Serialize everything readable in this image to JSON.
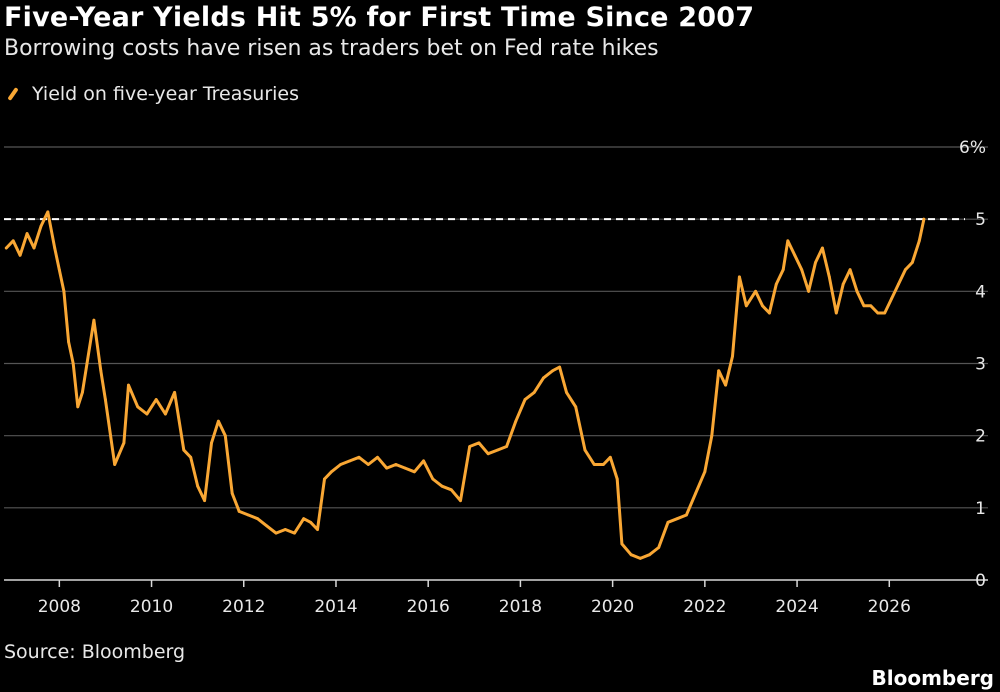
{
  "header": {
    "title": "Five-Year Yields Hit 5% for First Time Since 2007",
    "subtitle": "Borrowing costs have risen as traders bet on Fed rate hikes"
  },
  "footer": {
    "source": "Source: Bloomberg",
    "brand": "Bloomberg"
  },
  "colors": {
    "background": "#000000",
    "line": "#f9a734",
    "grid": "#555555",
    "reference": "#ffffff",
    "text": "#e8e8e8"
  },
  "chart_data": {
    "type": "line",
    "title": "Five-Year Yields Hit 5% for First Time Since 2007",
    "subtitle": "Borrowing costs have risen as traders bet on Fed rate hikes",
    "legend": "top-left",
    "grid": true,
    "xlim": [
      2006.8,
      2027.1
    ],
    "ylim": [
      0,
      6
    ],
    "x_ticks": [
      2008,
      2010,
      2012,
      2014,
      2016,
      2018,
      2020,
      2022,
      2024,
      2026
    ],
    "x_tick_labels": [
      "2008",
      "2010",
      "2012",
      "2014",
      "2016",
      "2018",
      "2020",
      "2022",
      "2024",
      "2026"
    ],
    "y_ticks": [
      0,
      1,
      2,
      3,
      4,
      5,
      6
    ],
    "y_tick_labels": [
      "0",
      "1",
      "2",
      "3",
      "4",
      "5",
      "6%"
    ],
    "y_axis_side": "right",
    "reference_line": {
      "y": 5,
      "style": "dashed"
    },
    "series": [
      {
        "name": "Yield on five-year Treasuries",
        "x": [
          2006.85,
          2007.0,
          2007.15,
          2007.3,
          2007.45,
          2007.6,
          2007.75,
          2007.9,
          2008.0,
          2008.1,
          2008.2,
          2008.3,
          2008.4,
          2008.5,
          2008.6,
          2008.75,
          2008.9,
          2009.0,
          2009.2,
          2009.4,
          2009.5,
          2009.7,
          2009.9,
          2010.1,
          2010.3,
          2010.5,
          2010.7,
          2010.85,
          2011.0,
          2011.15,
          2011.3,
          2011.45,
          2011.6,
          2011.75,
          2011.9,
          2012.1,
          2012.3,
          2012.5,
          2012.7,
          2012.9,
          2013.1,
          2013.3,
          2013.45,
          2013.6,
          2013.75,
          2013.9,
          2014.1,
          2014.3,
          2014.5,
          2014.7,
          2014.9,
          2015.1,
          2015.3,
          2015.5,
          2015.7,
          2015.9,
          2016.1,
          2016.3,
          2016.5,
          2016.7,
          2016.9,
          2017.1,
          2017.3,
          2017.5,
          2017.7,
          2017.9,
          2018.1,
          2018.3,
          2018.5,
          2018.7,
          2018.85,
          2019.0,
          2019.2,
          2019.4,
          2019.6,
          2019.8,
          2019.95,
          2020.1,
          2020.2,
          2020.4,
          2020.6,
          2020.8,
          2021.0,
          2021.2,
          2021.4,
          2021.6,
          2021.8,
          2022.0,
          2022.15,
          2022.3,
          2022.45,
          2022.6,
          2022.75,
          2022.9,
          2023.1,
          2023.25,
          2023.4,
          2023.55,
          2023.7,
          2023.8,
          2023.95,
          2024.1,
          2024.25,
          2024.4,
          2024.55,
          2024.7,
          2024.85,
          2025.0,
          2025.15,
          2025.3,
          2025.45,
          2025.6,
          2025.75,
          2025.9,
          2026.05,
          2026.2,
          2026.35,
          2026.5,
          2026.65,
          2026.75
        ],
        "y": [
          4.6,
          4.7,
          4.5,
          4.8,
          4.6,
          4.9,
          5.1,
          4.6,
          4.3,
          4.0,
          3.3,
          3.0,
          2.4,
          2.6,
          3.0,
          3.6,
          2.9,
          2.5,
          1.6,
          1.9,
          2.7,
          2.4,
          2.3,
          2.5,
          2.3,
          2.6,
          1.8,
          1.7,
          1.3,
          1.1,
          1.9,
          2.2,
          2.0,
          1.2,
          0.95,
          0.9,
          0.85,
          0.75,
          0.65,
          0.7,
          0.65,
          0.85,
          0.8,
          0.7,
          1.4,
          1.5,
          1.6,
          1.65,
          1.7,
          1.6,
          1.7,
          1.55,
          1.6,
          1.55,
          1.5,
          1.65,
          1.4,
          1.3,
          1.25,
          1.1,
          1.85,
          1.9,
          1.75,
          1.8,
          1.85,
          2.2,
          2.5,
          2.6,
          2.8,
          2.9,
          2.95,
          2.6,
          2.4,
          1.8,
          1.6,
          1.6,
          1.7,
          1.4,
          0.5,
          0.35,
          0.3,
          0.35,
          0.45,
          0.8,
          0.85,
          0.9,
          1.2,
          1.5,
          2.0,
          2.9,
          2.7,
          3.1,
          4.2,
          3.8,
          4.0,
          3.8,
          3.7,
          4.1,
          4.3,
          4.7,
          4.5,
          4.3,
          4.0,
          4.4,
          4.6,
          4.2,
          3.7,
          4.1,
          4.3,
          4.0,
          3.8,
          3.8,
          3.7,
          3.7,
          3.9,
          4.1,
          4.3,
          4.4,
          4.7,
          5.0
        ]
      }
    ]
  }
}
